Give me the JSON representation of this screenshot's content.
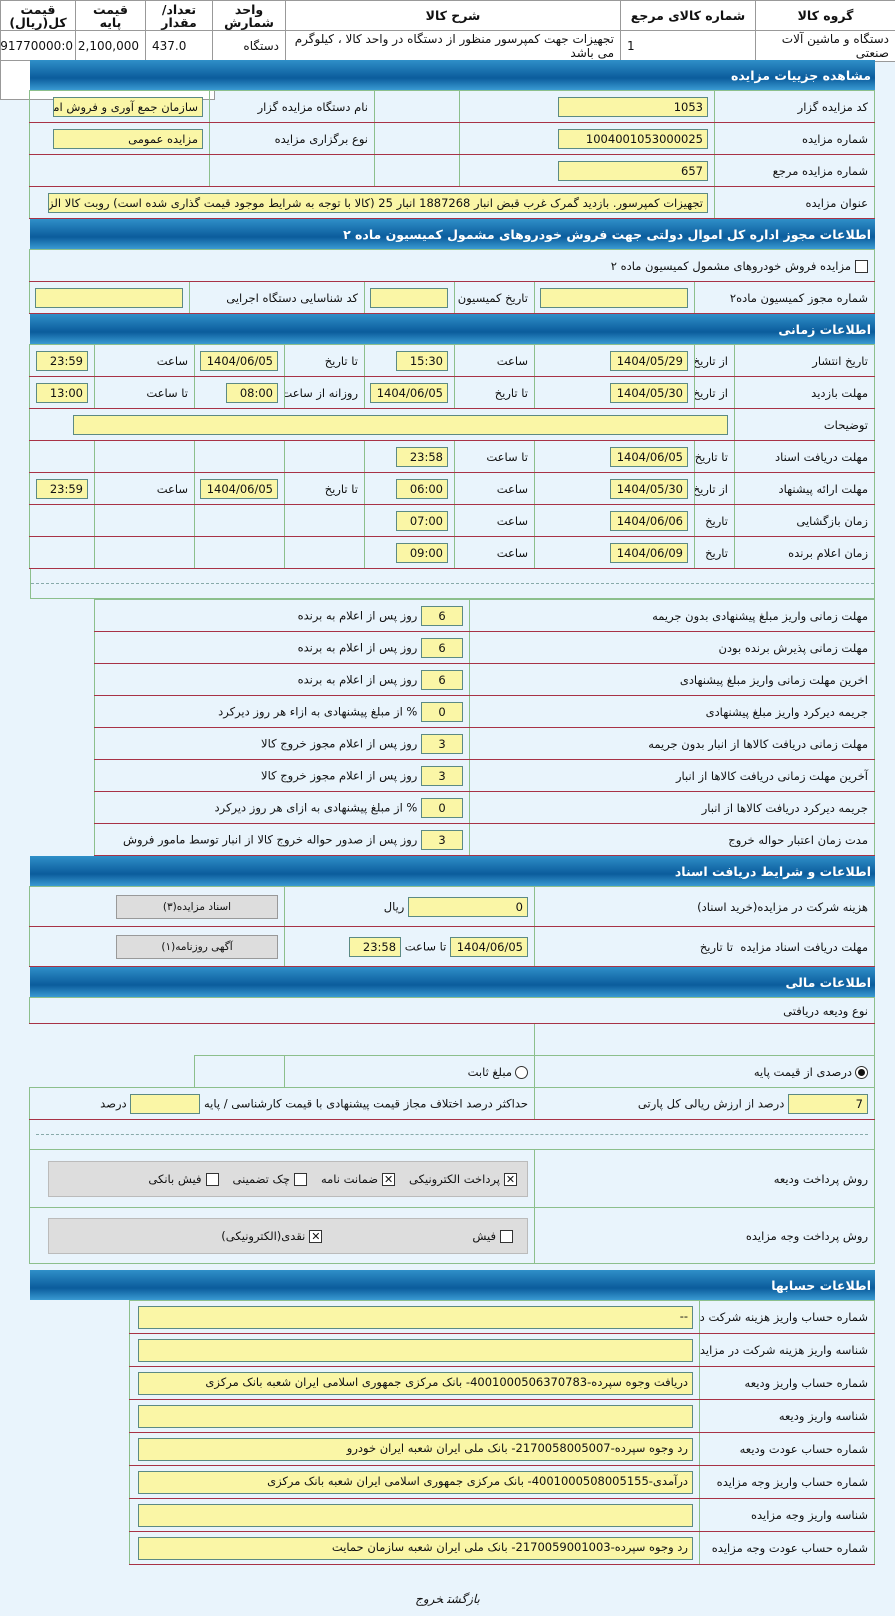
{
  "items_table": {
    "headers": [
      "گروه کالا",
      "شماره کالای مرجع",
      "شرح کالا",
      "واحد شمارش",
      "تعداد/مقدار",
      "قیمت پایه",
      "قیمت کل(ریال)"
    ],
    "row": [
      "دستگاه و ماشین آلات صنعتی",
      "1",
      "تجهیزات جهت کمپرسور منظور از دستگاه در واحد کالا ، کیلوگرم می باشد",
      "دستگاه",
      "437.0",
      "2,100,000",
      "91770000:0"
    ]
  },
  "details": {
    "title": "مشاهده جزییات مزایده",
    "code_label": "کد مزایده گزار",
    "code": "1053",
    "org_label": "نام دستگاه مزایده گزار",
    "org": "سازمان جمع آوری و فروش امو",
    "number_label": "شماره مزایده",
    "number": "1004001053000025",
    "type_label": "نوع برگزاری مزایده",
    "type": "مزایده عمومی",
    "ref_label": "شماره مزایده مرجع",
    "ref": "657",
    "subject_label": "عنوان مزایده",
    "subject": "تجهیزات کمپرسور. بازدید گمرک غرب قبض انبار 1887268 انبار 25 (کالا با توجه به شرایط موجود قیمت گذاری شده است) روبت کالا الزاه"
  },
  "permit": {
    "title": "اطلاعات مجوز اداره کل اموال دولتی جهت فروش خودروهای مشمول کمیسیون ماده ۲",
    "checkbox_label": "مزایده فروش خودروهای مشمول کمیسیون ماده ۲",
    "checked": false,
    "permit_no_label": "شماره مجوز کمیسیون ماده۲",
    "permit_no": "",
    "date_label": "تاریخ کمیسیون",
    "date": "",
    "exec_label": "کد شناسایی دستگاه اجرایی",
    "exec": ""
  },
  "timing": {
    "title": "اطلاعات زمانی",
    "rows": [
      {
        "label": "تاریخ انتشار",
        "pairs": [
          [
            "از تاریخ",
            "1404/05/29"
          ],
          [
            "ساعت",
            "15:30"
          ],
          [
            "تا تاریخ",
            "1404/06/05"
          ],
          [
            "ساعت",
            "23:59"
          ]
        ]
      },
      {
        "label": "مهلت بازدید",
        "pairs": [
          [
            "از تاریخ",
            "1404/05/30"
          ],
          [
            "تا تاریخ",
            "1404/06/05"
          ],
          [
            "روزانه از ساعت",
            "08:00"
          ],
          [
            "تا ساعت",
            "13:00"
          ]
        ]
      },
      {
        "label": "توضیحات",
        "notes": ""
      },
      {
        "label": "مهلت دریافت اسناد",
        "pairs": [
          [
            "تا تاریخ",
            "1404/06/05"
          ],
          [
            "تا ساعت",
            "23:58"
          ]
        ]
      },
      {
        "label": "مهلت ارائه پیشنهاد",
        "pairs": [
          [
            "از تاریخ",
            "1404/05/30"
          ],
          [
            "ساعت",
            "06:00"
          ],
          [
            "تا تاریخ",
            "1404/06/05"
          ],
          [
            "ساعت",
            "23:59"
          ]
        ]
      },
      {
        "label": "زمان بازگشایی",
        "pairs": [
          [
            "تاریخ",
            "1404/06/06"
          ],
          [
            "ساعت",
            "07:00"
          ]
        ]
      },
      {
        "label": "زمان اعلام برنده",
        "pairs": [
          [
            "تاریخ",
            "1404/06/09"
          ],
          [
            "ساعت",
            "09:00"
          ]
        ]
      }
    ]
  },
  "conditions": [
    {
      "label": "مهلت زمانی واریز مبلغ پیشنهادی بدون جریمه",
      "value": "6",
      "suffix": "روز پس از اعلام به برنده"
    },
    {
      "label": "مهلت زمانی پذیرش برنده بودن",
      "value": "6",
      "suffix": "روز پس از اعلام به برنده"
    },
    {
      "label": "اخرین مهلت زمانی واریز مبلغ پیشنهادی",
      "value": "6",
      "suffix": "روز پس از اعلام به برنده"
    },
    {
      "label": "جریمه دیرکرد واریز مبلغ پیشنهادی",
      "value": "0",
      "suffix": "% از مبلغ پیشنهادی به ازاء هر روز دیرکرد"
    },
    {
      "label": "مهلت زمانی دریافت کالاها از انبار بدون جریمه",
      "value": "3",
      "suffix": "روز پس از اعلام مجوز خروج کالا"
    },
    {
      "label": "آخرین مهلت زمانی دریافت کالاها از انبار",
      "value": "3",
      "suffix": "روز پس از اعلام مجوز خروج کالا"
    },
    {
      "label": "جریمه دیرکرد دریافت کالاها از انبار",
      "value": "0",
      "suffix": "% از مبلغ پیشنهادی به ازای هر روز دیرکرد"
    },
    {
      "label": "مدت زمان اعتبار حواله خروج",
      "value": "3",
      "suffix": "روز پس از صدور حواله خروج کالا از انبار توسط مامور فروش"
    }
  ],
  "documents": {
    "title": "اطلاعات و شرایط دریافت اسناد",
    "fee_label": "هزینه شرکت در مزایده(خرید اسناد)",
    "fee": "0",
    "fee_unit": "ریال",
    "docs_button": "اسناد مزایده(۳)",
    "deadline_label": "مهلت دریافت اسناد مزایده",
    "to_date_label": "تا تاریخ",
    "to_date": "1404/06/05",
    "to_time_label": "تا ساعت",
    "to_time": "23:58",
    "ad_button": "آگهی روزنامه(۱)"
  },
  "financial": {
    "title": "اطلاعات مالی",
    "deposit_type_label": "نوع ودیعه دریافتی",
    "radio_percent": "درصدی از قیمت پایه",
    "radio_fixed": "مبلغ ثابت",
    "selected": "percent",
    "percent": "7",
    "percent_suffix": "درصد از ارزش ریالی کل پارتی",
    "max_diff_label": "حداکثر درصد اختلاف مجاز قیمت پیشنهادی با قیمت کارشناسی / پایه",
    "max_diff": "",
    "max_diff_unit": "درصد",
    "deposit_method_label": "روش پرداخت ودیعه",
    "deposit_methods": [
      {
        "label": "پرداخت الکترونیکی",
        "checked": true
      },
      {
        "label": "ضمانت نامه",
        "checked": true
      },
      {
        "label": "چک تضمینی",
        "checked": false
      },
      {
        "label": "فیش بانکی",
        "checked": false
      }
    ],
    "payment_method_label": "روش پرداخت وجه مزایده",
    "payment_methods": [
      {
        "label": "فیش",
        "checked": false
      },
      {
        "label": "نقدی(الکترونیکی)",
        "checked": true
      }
    ]
  },
  "accounts": {
    "title": "اطلاعات حسابها",
    "rows": [
      {
        "label": "شماره حساب واریز هزینه شرکت در مزایده",
        "value": "--"
      },
      {
        "label": "شناسه واریز هزینه شرکت در مزایده",
        "value": ""
      },
      {
        "label": "شماره حساب واریز ودیعه",
        "value": "دریافت وجوه سپرده-4001000506370783- بانک مرکزی جمهوری اسلامی ایران شعبه بانک مرکزی"
      },
      {
        "label": "شناسه واریز ودیعه",
        "value": ""
      },
      {
        "label": "شماره حساب عودت ودیعه",
        "value": "رد وجوه سپرده-2170058005007- بانک ملی ایران شعبه ایران خودرو"
      },
      {
        "label": "شماره حساب واریز وجه مزایده",
        "value": "درآمدی-4001000508005155- بانک مرکزی جمهوری اسلامی ایران شعبه بانک مرکزی"
      },
      {
        "label": "شناسه واریز وجه مزایده",
        "value": ""
      },
      {
        "label": "شماره حساب عودت وجه مزایده",
        "value": "رد وجوه سپرده-2170059001003- بانک ملی ایران شعبه سازمان حمایت"
      }
    ]
  },
  "footer": {
    "back": "بازگشت",
    "exit": "خروج"
  }
}
